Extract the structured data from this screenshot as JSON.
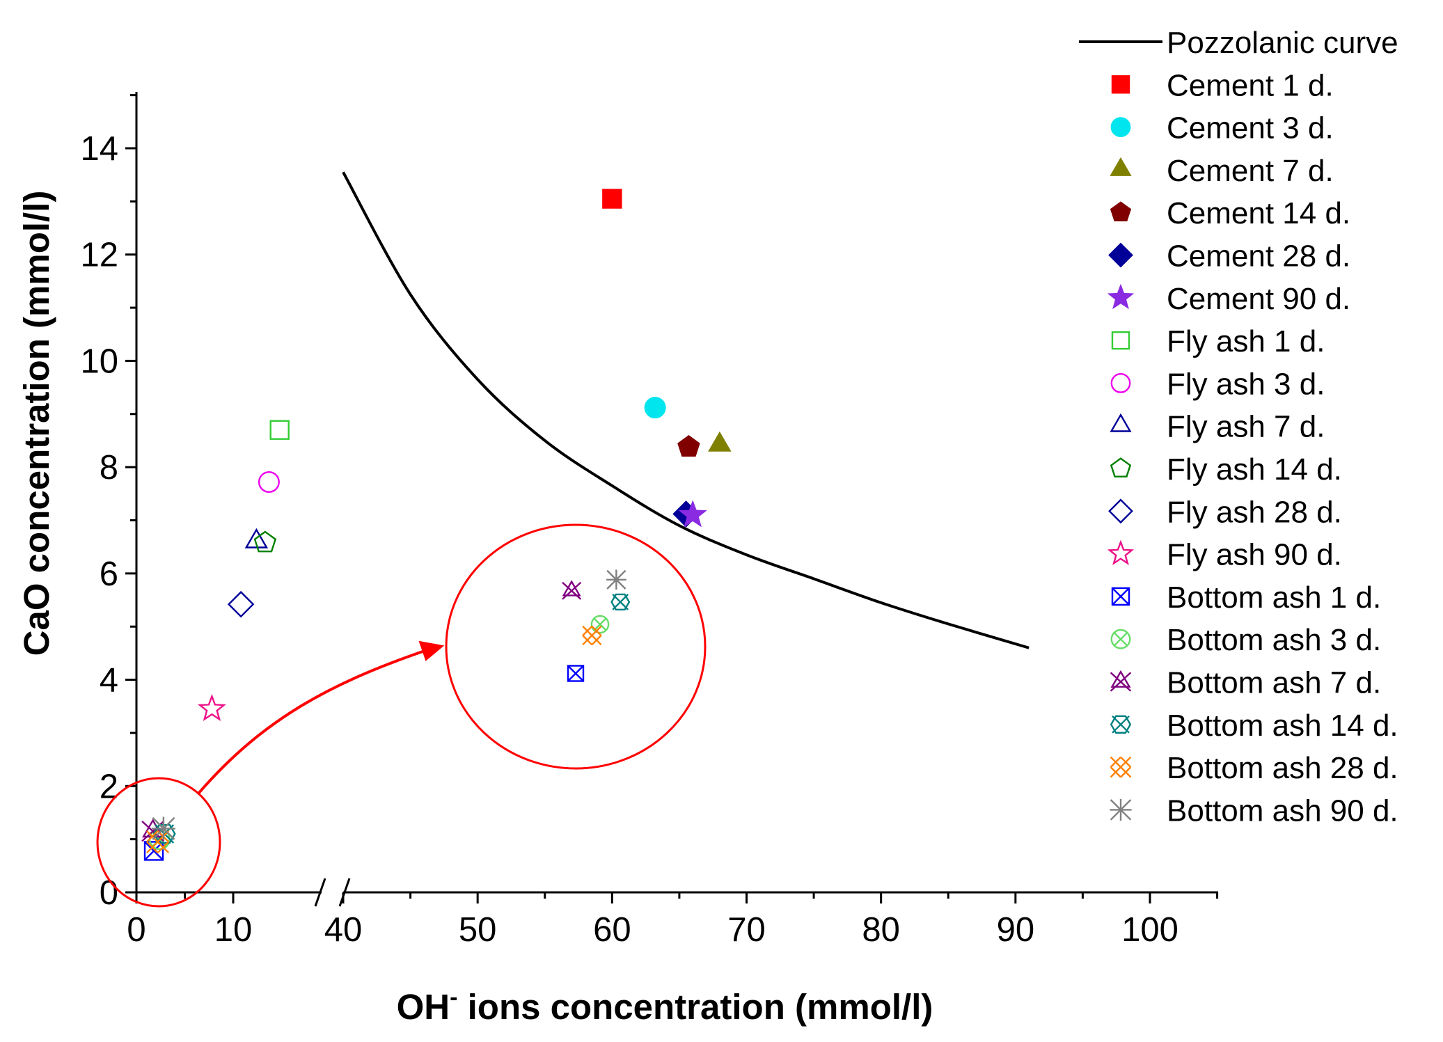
{
  "chart_data": {
    "type": "scatter",
    "title": "",
    "xlabel": {
      "main": "OH",
      "superscript": "-",
      "rest": " ions concentration (mmol/l)"
    },
    "ylabel": "CaO concentration (mmol/l)",
    "x_axis_break": {
      "from": 15,
      "to": 40
    },
    "xlim_left": [
      0,
      15
    ],
    "xlim_right": [
      40,
      105
    ],
    "ylim": [
      0,
      15
    ],
    "x_ticks": [
      0,
      10,
      40,
      50,
      60,
      70,
      80,
      90,
      100
    ],
    "x_tick_labels": [
      "0",
      "10",
      "40",
      "50",
      "60",
      "70",
      "80",
      "90",
      "100"
    ],
    "y_ticks": [
      0,
      2,
      4,
      6,
      8,
      10,
      12,
      14
    ],
    "y_tick_labels": [
      "0",
      "2",
      "4",
      "6",
      "8",
      "10",
      "12",
      "14"
    ],
    "pozzolanic_curve": {
      "name": "Pozzolanic curve",
      "color": "#000000",
      "points": [
        [
          40,
          13.55
        ],
        [
          45,
          11.25
        ],
        [
          50,
          9.65
        ],
        [
          55,
          8.5
        ],
        [
          60,
          7.65
        ],
        [
          65,
          6.9
        ],
        [
          70,
          6.35
        ],
        [
          75,
          5.9
        ],
        [
          80,
          5.45
        ],
        [
          85,
          5.05
        ],
        [
          91,
          4.6
        ]
      ]
    },
    "series": [
      {
        "name": "Cement 1 d.",
        "marker": "square",
        "filled": true,
        "color": "#ff0000",
        "x": 60,
        "y": 13.05
      },
      {
        "name": "Cement 3 d.",
        "marker": "circle",
        "filled": true,
        "color": "#00e5ee",
        "x": 63.2,
        "y": 9.12
      },
      {
        "name": "Cement 7 d.",
        "marker": "triangle",
        "filled": true,
        "color": "#808000",
        "x": 68,
        "y": 8.42
      },
      {
        "name": "Cement 14 d.",
        "marker": "pentagon",
        "filled": true,
        "color": "#800000",
        "x": 65.7,
        "y": 8.38
      },
      {
        "name": "Cement 28 d.",
        "marker": "diamond",
        "filled": true,
        "color": "#000099",
        "x": 65.5,
        "y": 7.12
      },
      {
        "name": "Cement 90 d.",
        "marker": "star",
        "filled": true,
        "color": "#8a2be2",
        "x": 66,
        "y": 7.1
      },
      {
        "name": "Fly ash 1 d.",
        "marker": "square",
        "filled": false,
        "color": "#33cc33",
        "x": 14.8,
        "y": 8.7
      },
      {
        "name": "Fly ash 3 d.",
        "marker": "circle",
        "filled": false,
        "color": "#ee00ee",
        "x": 13.7,
        "y": 7.72
      },
      {
        "name": "Fly ash 7 d.",
        "marker": "triangle",
        "filled": false,
        "color": "#000099",
        "x": 12.4,
        "y": 6.6
      },
      {
        "name": "Fly ash 14 d.",
        "marker": "pentagon",
        "filled": false,
        "color": "#008000",
        "x": 13.3,
        "y": 6.58
      },
      {
        "name": "Fly ash 28 d.",
        "marker": "diamond",
        "filled": false,
        "color": "#000099",
        "x": 10.8,
        "y": 5.42
      },
      {
        "name": "Fly ash 90 d.",
        "marker": "star",
        "filled": false,
        "color": "#ee1188",
        "x": 7.8,
        "y": 3.45
      },
      {
        "name": "Bottom ash 1 d.",
        "marker": "box-x",
        "filled": false,
        "color": "#0000ff",
        "x": 1.8,
        "y": 0.78
      },
      {
        "name": "Bottom ash 3 d.",
        "marker": "circle-x",
        "filled": false,
        "color": "#66dd66",
        "x": 2.4,
        "y": 1.0
      },
      {
        "name": "Bottom ash 7 d.",
        "marker": "tri-x",
        "filled": false,
        "color": "#800080",
        "x": 1.7,
        "y": 1.15
      },
      {
        "name": "Bottom ash 14 d.",
        "marker": "hex-x",
        "filled": false,
        "color": "#008080",
        "x": 2.9,
        "y": 1.1
      },
      {
        "name": "Bottom ash 28 d.",
        "marker": "double-x",
        "filled": false,
        "color": "#ff8000",
        "x": 2.2,
        "y": 0.95
      },
      {
        "name": "Bottom ash 90 d.",
        "marker": "asterisk",
        "filled": false,
        "color": "#808080",
        "x": 2.8,
        "y": 1.2
      }
    ],
    "inset_zoom": {
      "description_only_visual": true,
      "source_x": 1.8,
      "source_y": 0.9,
      "arrow_color": "#ff0000"
    },
    "legend_position": "top-right",
    "grid": false
  }
}
